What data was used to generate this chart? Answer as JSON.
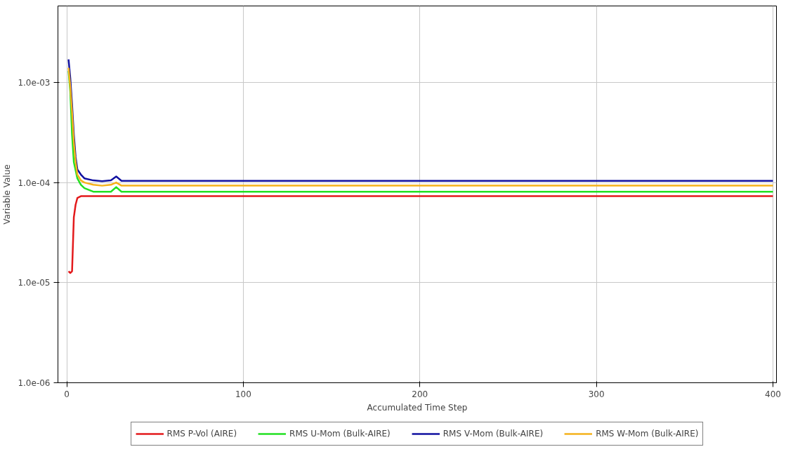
{
  "chart_data": {
    "type": "line",
    "xlabel": "Accumulated Time Step",
    "ylabel": "Variable Value",
    "log": "y",
    "grid": true,
    "legend": "bottom",
    "marker": "none",
    "line_style": "solid",
    "xlim": [
      -5,
      402
    ],
    "xticks": [
      0,
      100,
      200,
      300,
      400
    ],
    "ylim": [
      1e-06,
      0.0058
    ],
    "yticks": [
      {
        "value": 1e-06,
        "label": "1.0e-06"
      },
      {
        "value": 1e-05,
        "label": "1.0e-05"
      },
      {
        "value": 0.0001,
        "label": "1.0e-04"
      },
      {
        "value": 0.001,
        "label": "1.0e-03"
      }
    ],
    "series": [
      {
        "name": "RMS P-Vol (AIRE)",
        "color": "#e31a1c",
        "x": [
          1,
          2,
          3,
          4,
          5,
          6,
          8,
          400
        ],
        "values": [
          1.3e-05,
          1.25e-05,
          1.3e-05,
          4.5e-05,
          6e-05,
          7e-05,
          7.3e-05,
          7.3e-05
        ]
      },
      {
        "name": "RMS U-Mom (Bulk-AIRE)",
        "color": "#22e022",
        "x": [
          1,
          2,
          3,
          4,
          6,
          8,
          10,
          15,
          20,
          25,
          28,
          31,
          400
        ],
        "values": [
          0.0013,
          0.0008,
          0.0003,
          0.00016,
          0.00011,
          9.5e-05,
          8.8e-05,
          8.1e-05,
          8.1e-05,
          8.1e-05,
          9e-05,
          8.1e-05,
          8.1e-05
        ]
      },
      {
        "name": "RMS V-Mom (Bulk-AIRE)",
        "color": "#1010a0",
        "x": [
          1,
          2,
          3,
          4,
          5,
          6,
          8,
          10,
          15,
          20,
          25,
          28,
          31,
          400
        ],
        "values": [
          0.0017,
          0.0011,
          0.0006,
          0.0003,
          0.00018,
          0.000135,
          0.00012,
          0.00011,
          0.000105,
          0.000103,
          0.000105,
          0.000115,
          0.000104,
          0.000104
        ]
      },
      {
        "name": "RMS W-Mom (Bulk-AIRE)",
        "color": "#f5b21c",
        "x": [
          1,
          2,
          3,
          4,
          5,
          6,
          8,
          10,
          15,
          20,
          25,
          28,
          31,
          400
        ],
        "values": [
          0.0014,
          0.0009,
          0.0005,
          0.00025,
          0.00016,
          0.00012,
          0.000105,
          0.0001,
          9.5e-05,
          9.3e-05,
          9.5e-05,
          0.0001,
          9.3e-05,
          9.3e-05
        ]
      }
    ]
  }
}
